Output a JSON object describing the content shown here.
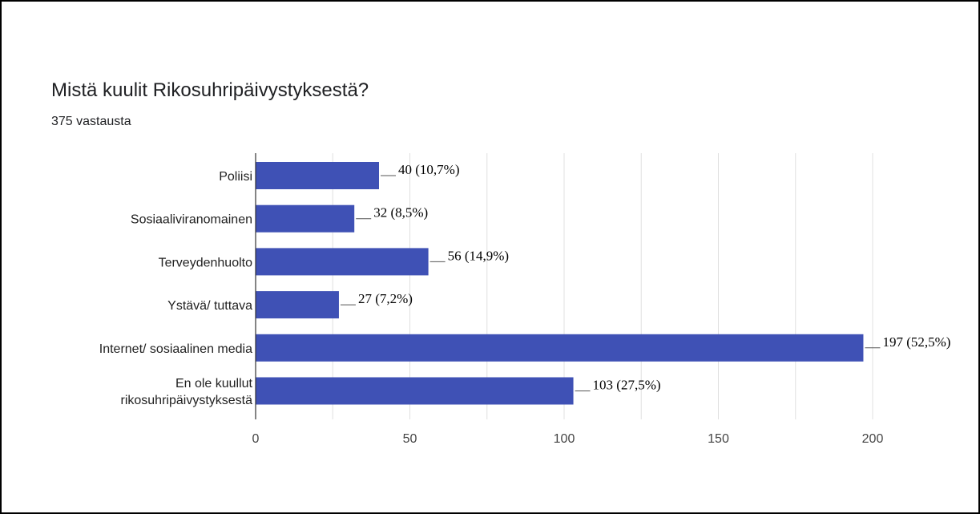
{
  "header": {
    "title": "Mistä kuulit Rikosuhripäivystyksestä?",
    "subtitle": "375 vastausta"
  },
  "colors": {
    "bar": "#3f51b5",
    "grid": "#e0e0e0",
    "axis": "#333333",
    "leader": "#555555"
  },
  "chart_data": {
    "type": "bar",
    "orientation": "horizontal",
    "title": "",
    "xlabel": "",
    "ylabel": "",
    "categories": [
      [
        "Poliisi"
      ],
      [
        "Sosiaaliviranomainen"
      ],
      [
        "Terveydenhuolto"
      ],
      [
        "Ystävä/ tuttava"
      ],
      [
        "Internet/ sosiaalinen media"
      ],
      [
        "En ole kuullut",
        "rikosuhripäivystyksestä"
      ]
    ],
    "values": [
      40,
      32,
      56,
      27,
      197,
      103
    ],
    "data_labels": [
      "40 (10,7%)",
      "32 (8,5%)",
      "56 (14,9%)",
      "27 (7,2%)",
      "197 (52,5%)",
      "103 (27,5%)"
    ],
    "xlim": [
      0,
      200
    ],
    "ticks": [
      0,
      50,
      100,
      150,
      200
    ],
    "tick_labels": [
      "0",
      "50",
      "100",
      "150",
      "200"
    ],
    "grid": true,
    "legend": "none"
  }
}
